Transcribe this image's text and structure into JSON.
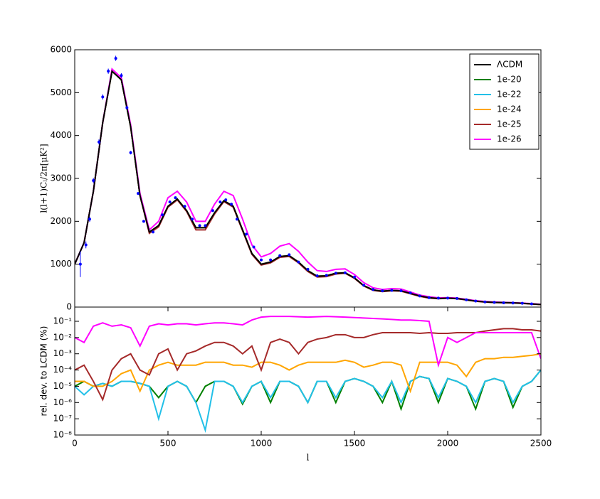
{
  "chart_data": [
    {
      "type": "line",
      "ylabel": "l(l+1)Cₗ/2π[μK²]",
      "xlim": [
        0,
        2500
      ],
      "ylim": [
        0,
        6000
      ],
      "yticks": [
        0,
        1000,
        2000,
        3000,
        4000,
        5000,
        6000
      ],
      "legend": "upper right",
      "x": [
        0,
        50,
        100,
        150,
        200,
        250,
        300,
        350,
        400,
        450,
        500,
        550,
        600,
        650,
        700,
        750,
        800,
        850,
        900,
        950,
        1000,
        1050,
        1100,
        1150,
        1200,
        1250,
        1300,
        1350,
        1400,
        1450,
        1500,
        1550,
        1600,
        1650,
        1700,
        1750,
        1800,
        1850,
        1900,
        1950,
        2000,
        2050,
        2100,
        2150,
        2200,
        2250,
        2300,
        2350,
        2400,
        2450,
        2500
      ],
      "series": [
        {
          "name": "1e-20",
          "color": "#008000",
          "values": [
            1000,
            1500,
            2700,
            4300,
            5500,
            5300,
            4200,
            2600,
            1750,
            1900,
            2350,
            2520,
            2250,
            1850,
            1850,
            2200,
            2480,
            2350,
            1800,
            1250,
            1000,
            1050,
            1180,
            1200,
            1050,
            850,
            720,
            730,
            790,
            800,
            680,
            500,
            400,
            370,
            390,
            380,
            320,
            260,
            220,
            200,
            210,
            200,
            170,
            140,
            120,
            110,
            105,
            100,
            90,
            75,
            60
          ]
        },
        {
          "name": "1e-22",
          "color": "#22c0e8",
          "values": [
            1000,
            1500,
            2700,
            4300,
            5500,
            5300,
            4200,
            2600,
            1750,
            1900,
            2350,
            2520,
            2250,
            1850,
            1850,
            2200,
            2480,
            2350,
            1800,
            1250,
            1000,
            1050,
            1180,
            1200,
            1050,
            850,
            720,
            730,
            790,
            800,
            680,
            500,
            400,
            370,
            390,
            380,
            320,
            260,
            220,
            200,
            210,
            200,
            170,
            140,
            120,
            110,
            105,
            100,
            90,
            75,
            60
          ]
        },
        {
          "name": "1e-24",
          "color": "#ffa500",
          "values": [
            1000,
            1500,
            2700,
            4300,
            5500,
            5300,
            4200,
            2600,
            1750,
            1900,
            2350,
            2520,
            2250,
            1850,
            1850,
            2200,
            2480,
            2350,
            1800,
            1250,
            1000,
            1050,
            1180,
            1200,
            1050,
            850,
            720,
            730,
            790,
            800,
            680,
            500,
            400,
            370,
            390,
            380,
            320,
            260,
            220,
            200,
            210,
            200,
            170,
            140,
            120,
            110,
            105,
            100,
            90,
            75,
            60
          ]
        },
        {
          "name": "1e-25",
          "color": "#a52a2a",
          "values": [
            1000,
            1500,
            2700,
            4300,
            5500,
            5300,
            4200,
            2600,
            1720,
            1870,
            2330,
            2500,
            2230,
            1800,
            1800,
            2170,
            2460,
            2330,
            1780,
            1230,
            980,
            1030,
            1160,
            1180,
            1030,
            830,
            700,
            710,
            770,
            790,
            670,
            490,
            390,
            360,
            380,
            370,
            310,
            250,
            210,
            195,
            205,
            195,
            165,
            135,
            115,
            105,
            100,
            95,
            85,
            70,
            55
          ]
        },
        {
          "name": "1e-26",
          "color": "#ff00ff",
          "values": [
            1000,
            1500,
            2700,
            4300,
            5550,
            5350,
            4250,
            2650,
            1800,
            2000,
            2550,
            2700,
            2450,
            2000,
            2000,
            2400,
            2700,
            2600,
            2050,
            1450,
            1170,
            1250,
            1420,
            1480,
            1300,
            1050,
            850,
            830,
            880,
            890,
            760,
            570,
            450,
            410,
            430,
            420,
            350,
            280,
            240,
            215,
            220,
            210,
            180,
            150,
            130,
            118,
            110,
            104,
            94,
            80,
            64
          ]
        },
        {
          "name": "ΛCDM",
          "color": "#000000",
          "values": [
            1000,
            1500,
            2700,
            4300,
            5500,
            5300,
            4200,
            2600,
            1750,
            1900,
            2350,
            2520,
            2250,
            1850,
            1850,
            2200,
            2480,
            2350,
            1800,
            1250,
            1000,
            1050,
            1180,
            1200,
            1050,
            850,
            720,
            730,
            790,
            800,
            680,
            500,
            400,
            370,
            390,
            380,
            320,
            260,
            220,
            200,
            210,
            200,
            170,
            140,
            120,
            110,
            105,
            100,
            90,
            75,
            60
          ]
        }
      ],
      "observations": {
        "color": "#0000ff",
        "x": [
          30,
          60,
          80,
          100,
          130,
          150,
          180,
          220,
          250,
          280,
          300,
          340,
          370,
          420,
          470,
          510,
          540,
          590,
          630,
          670,
          700,
          740,
          780,
          810,
          840,
          870,
          920,
          960,
          1000,
          1050,
          1100,
          1150,
          1200,
          1250,
          1300,
          1350,
          1400,
          1450,
          1500,
          1550,
          1600,
          1650,
          1700,
          1750,
          1800,
          1850,
          1900,
          1950,
          2000,
          2050,
          2100,
          2150,
          2200,
          2250,
          2300,
          2350,
          2400,
          2450
        ],
        "values": [
          1000,
          1450,
          2050,
          2950,
          3850,
          4900,
          5500,
          5800,
          5400,
          4650,
          3600,
          2650,
          2000,
          1750,
          2150,
          2450,
          2550,
          2350,
          2050,
          1900,
          1900,
          2250,
          2450,
          2500,
          2400,
          2050,
          1700,
          1400,
          1100,
          1100,
          1200,
          1220,
          1050,
          880,
          730,
          740,
          790,
          800,
          700,
          510,
          410,
          380,
          390,
          380,
          330,
          260,
          220,
          210,
          210,
          200,
          170,
          140,
          120,
          110,
          100,
          95,
          90,
          75
        ],
        "errors": [
          300,
          80,
          60,
          60,
          60,
          60,
          60,
          60,
          50,
          40,
          40,
          30,
          30,
          25,
          25,
          25,
          25,
          25,
          25,
          20,
          20,
          20,
          20,
          20,
          20,
          20,
          20,
          20,
          20,
          20,
          20,
          20,
          20,
          20,
          20,
          20,
          20,
          20,
          20,
          20,
          20,
          20,
          20,
          20,
          20,
          20,
          20,
          20,
          20,
          20,
          20,
          20,
          20,
          20,
          20,
          20,
          20,
          20
        ]
      }
    },
    {
      "type": "line",
      "xlabel": "l",
      "ylabel": "rel. dev. to LCDM (%)",
      "log_y": true,
      "xlim": [
        0,
        2500
      ],
      "ylim": [
        1e-08,
        0.75
      ],
      "xticks": [
        0,
        500,
        1000,
        1500,
        2000,
        2500
      ],
      "yticks": [
        {
          "value": 1e-08,
          "label": "10⁻⁸"
        },
        {
          "value": 1e-07,
          "label": "10⁻⁷"
        },
        {
          "value": 1e-06,
          "label": "10⁻⁶"
        },
        {
          "value": 1e-05,
          "label": "10⁻⁵"
        },
        {
          "value": 0.0001,
          "label": "10⁻⁴"
        },
        {
          "value": 0.001,
          "label": "10⁻³"
        },
        {
          "value": 0.01,
          "label": "10⁻²"
        },
        {
          "value": 0.1,
          "label": "10⁻¹"
        }
      ],
      "x": [
        0,
        50,
        100,
        150,
        200,
        250,
        300,
        350,
        400,
        450,
        500,
        550,
        600,
        650,
        700,
        750,
        800,
        850,
        900,
        950,
        1000,
        1050,
        1100,
        1150,
        1200,
        1250,
        1300,
        1350,
        1400,
        1450,
        1500,
        1550,
        1600,
        1650,
        1700,
        1750,
        1800,
        1850,
        1900,
        1950,
        2000,
        2050,
        2100,
        2150,
        2200,
        2250,
        2300,
        2350,
        2400,
        2450,
        2500
      ],
      "series": [
        {
          "color": "#008000",
          "values": [
            1e-05,
            2e-05,
            1e-05,
            1.5e-05,
            1e-05,
            2e-05,
            2e-05,
            1.5e-05,
            1e-05,
            2e-06,
            1e-05,
            2e-05,
            1e-05,
            1e-06,
            1e-05,
            2e-05,
            2e-05,
            1e-05,
            8e-07,
            1e-05,
            2e-05,
            1e-06,
            2e-05,
            2e-05,
            1e-05,
            1e-06,
            2e-05,
            2e-05,
            1e-06,
            2e-05,
            3e-05,
            2e-05,
            1e-05,
            1e-06,
            2e-05,
            4e-07,
            2e-05,
            4e-05,
            3e-05,
            1e-06,
            3e-05,
            2e-05,
            1e-05,
            4e-07,
            2e-05,
            3e-05,
            2e-05,
            5e-07,
            1e-05,
            2e-05,
            0.0001
          ]
        },
        {
          "color": "#22c0e8",
          "values": [
            1e-05,
            3e-06,
            1e-05,
            1.5e-05,
            1e-05,
            2e-05,
            2e-05,
            1.5e-05,
            1e-05,
            1e-07,
            1e-05,
            2e-05,
            1e-05,
            1e-06,
            2e-08,
            2e-05,
            2e-05,
            1e-05,
            1e-06,
            1e-05,
            2e-05,
            2e-06,
            2e-05,
            2e-05,
            1e-05,
            1e-06,
            2e-05,
            2e-05,
            2e-06,
            2e-05,
            3e-05,
            2e-05,
            1e-05,
            2e-06,
            2e-05,
            1e-06,
            2e-05,
            4e-05,
            3e-05,
            2e-06,
            3e-05,
            2e-05,
            1e-05,
            1e-06,
            2e-05,
            3e-05,
            2e-05,
            1e-06,
            1e-05,
            2e-05,
            0.0001
          ]
        },
        {
          "color": "#ffa500",
          "values": [
            2e-05,
            2e-05,
            1e-05,
            1e-05,
            2e-05,
            6e-05,
            0.0001,
            5e-06,
            0.0001,
            0.0002,
            0.0003,
            0.0002,
            0.0002,
            0.0002,
            0.0003,
            0.0003,
            0.0003,
            0.0002,
            0.0002,
            0.00015,
            0.0003,
            0.0003,
            0.0002,
            0.0001,
            0.0002,
            0.0003,
            0.0003,
            0.0003,
            0.0003,
            0.0004,
            0.0003,
            0.00015,
            0.0002,
            0.0003,
            0.0003,
            0.0002,
            5e-06,
            0.0003,
            0.0003,
            0.0003,
            0.0003,
            0.0002,
            4e-05,
            0.0003,
            0.0005,
            0.0005,
            0.0006,
            0.0006,
            0.0007,
            0.0008,
            0.001
          ]
        },
        {
          "color": "#a52a2a",
          "values": [
            0.0001,
            0.0002,
            2e-05,
            1.5e-06,
            0.0001,
            0.0005,
            0.001,
            0.0001,
            5e-05,
            0.001,
            0.002,
            0.0001,
            0.001,
            0.0015,
            0.003,
            0.005,
            0.005,
            0.003,
            0.001,
            0.003,
            0.0001,
            0.005,
            0.008,
            0.005,
            0.001,
            0.005,
            0.008,
            0.01,
            0.015,
            0.015,
            0.01,
            0.01,
            0.015,
            0.02,
            0.02,
            0.02,
            0.02,
            0.018,
            0.02,
            0.018,
            0.018,
            0.02,
            0.02,
            0.02,
            0.025,
            0.03,
            0.035,
            0.035,
            0.03,
            0.03,
            0.025
          ]
        },
        {
          "color": "#ff00ff",
          "values": [
            0.01,
            0.005,
            0.05,
            0.08,
            0.05,
            0.06,
            0.04,
            0.003,
            0.05,
            0.07,
            0.06,
            0.07,
            0.07,
            0.06,
            0.07,
            0.08,
            0.08,
            0.07,
            0.06,
            0.12,
            0.18,
            0.2,
            0.2,
            0.2,
            0.19,
            0.18,
            0.19,
            0.2,
            0.19,
            0.18,
            0.17,
            0.16,
            0.15,
            0.14,
            0.13,
            0.12,
            0.12,
            0.11,
            0.1,
            0.0002,
            0.01,
            0.005,
            0.01,
            0.02,
            0.02,
            0.02,
            0.02,
            0.02,
            0.02,
            0.02,
            0.0005
          ]
        }
      ]
    }
  ]
}
